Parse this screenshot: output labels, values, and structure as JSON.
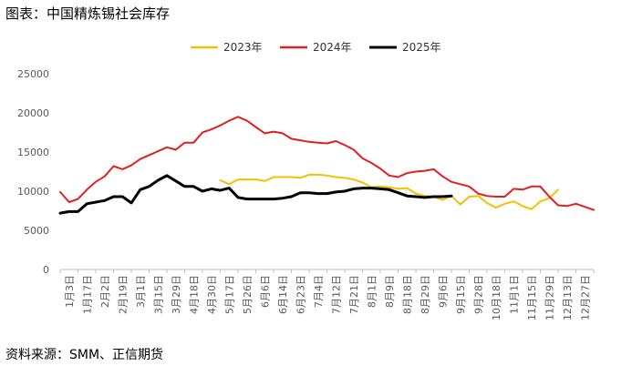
{
  "chart_data": {
    "type": "line",
    "title": "图表：中国精炼锡社会库存",
    "source": "资料来源：SMM、正信期货",
    "xlabel": "",
    "ylabel": "",
    "ylim": [
      0,
      25000
    ],
    "yticks": [
      0,
      5000,
      10000,
      15000,
      20000,
      25000
    ],
    "grid": false,
    "legend_position": "top-center",
    "x_tick_labels": [
      "1月3日",
      "1月17日",
      "2月2日",
      "2月19日",
      "3月1日",
      "3月15日",
      "3月29日",
      "4月18日",
      "4月30日",
      "5月17日",
      "5月26日",
      "6月6日",
      "6月14日",
      "6月23日",
      "7月4日",
      "7月12日",
      "7月21日",
      "8月1日",
      "8月9日",
      "8月18日",
      "8月29日",
      "9月6日",
      "9月15日",
      "9月28日",
      "10月18日",
      "11月1日",
      "11月15日",
      "11月29日",
      "12月13日",
      "12月27日"
    ],
    "series": [
      {
        "name": "2023年",
        "color": "#F5C000",
        "start_index": 18,
        "values": [
          11400,
          10900,
          11500,
          11500,
          11500,
          11300,
          11800,
          11800,
          11800,
          11700,
          12100,
          12100,
          12000,
          11800,
          11700,
          11500,
          11100,
          10500,
          10600,
          10500,
          10300,
          10400,
          9700,
          9400,
          9300,
          8900,
          9400,
          8300,
          9300,
          9400,
          8500,
          7900,
          8400,
          8700,
          8100,
          7700,
          8700,
          9100,
          10200
        ]
      },
      {
        "name": "2024年",
        "color": "#E02020",
        "start_index": 0,
        "values": [
          9900,
          8600,
          9000,
          10200,
          11200,
          11900,
          13200,
          12800,
          13300,
          14100,
          14600,
          15100,
          15600,
          15300,
          16200,
          16200,
          17500,
          17900,
          18400,
          19000,
          19500,
          19000,
          18200,
          17400,
          17600,
          17400,
          16700,
          16500,
          16300,
          16200,
          16100,
          16400,
          15900,
          15300,
          14200,
          13600,
          12900,
          12000,
          11800,
          12300,
          12500,
          12600,
          12800,
          11900,
          11200,
          10900,
          10600,
          9700,
          9400,
          9300,
          9300,
          10300,
          10200,
          10600,
          10600,
          9300,
          8200,
          8100,
          8400,
          8000,
          7600
        ]
      },
      {
        "name": "2025年",
        "color": "#000000",
        "start_index": 0,
        "values": [
          7200,
          7400,
          7400,
          8400,
          8600,
          8800,
          9300,
          9300,
          8500,
          10200,
          10600,
          11400,
          12000,
          11300,
          10600,
          10600,
          10000,
          10300,
          10100,
          10400,
          9200,
          9000,
          9000,
          9000,
          9000,
          9100,
          9300,
          9800,
          9800,
          9700,
          9700,
          9900,
          10000,
          10300,
          10400,
          10400,
          10300,
          10200,
          9800,
          9400,
          9300,
          9200,
          9300,
          9300,
          9400
        ]
      }
    ]
  }
}
